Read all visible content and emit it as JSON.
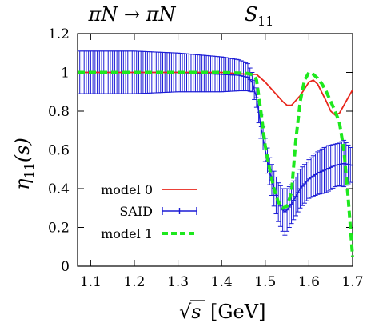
{
  "chart_data": {
    "type": "line",
    "title_left": "πN → πN",
    "title_right_base": "S",
    "title_right_sub": "11",
    "xlabel_sqrt": "√s",
    "xlabel_bar": "s",
    "xlabel_unit": "[GeV]",
    "ylabel_base": "η",
    "ylabel_sub": "11",
    "ylabel_arg": "(s)",
    "xlim": [
      1.07,
      1.7
    ],
    "ylim": [
      0.0,
      1.2
    ],
    "xticks": [
      "1.1",
      "1.2",
      "1.3",
      "1.4",
      "1.5",
      "1.6",
      "1.7"
    ],
    "xtick_values": [
      1.1,
      1.2,
      1.3,
      1.4,
      1.5,
      1.6,
      1.7
    ],
    "yticks": [
      "0",
      "0.2",
      "0.4",
      "0.6",
      "0.8",
      "1",
      "1.2"
    ],
    "ytick_values": [
      0.0,
      0.2,
      0.4,
      0.6,
      0.8,
      1.0,
      1.2
    ],
    "grid": false,
    "legend_placement": "bottom-left",
    "series": [
      {
        "name": "model 0",
        "style": "solid",
        "color": "#e8261c",
        "x": [
          1.07,
          1.2,
          1.3,
          1.4,
          1.46,
          1.48,
          1.49,
          1.5,
          1.52,
          1.54,
          1.55,
          1.56,
          1.58,
          1.6,
          1.61,
          1.62,
          1.64,
          1.65,
          1.66,
          1.67,
          1.68,
          1.69,
          1.7
        ],
        "y": [
          1.0,
          1.0,
          1.0,
          1.0,
          0.99,
          0.99,
          0.97,
          0.95,
          0.9,
          0.85,
          0.83,
          0.83,
          0.88,
          0.95,
          0.96,
          0.94,
          0.85,
          0.8,
          0.78,
          0.79,
          0.83,
          0.87,
          0.91
        ]
      },
      {
        "name": "SAID",
        "style": "errorbars",
        "color": "#1c1cd6",
        "x": [
          1.07,
          1.2,
          1.3,
          1.4,
          1.44,
          1.46,
          1.47,
          1.48,
          1.49,
          1.5,
          1.51,
          1.52,
          1.53,
          1.54,
          1.545,
          1.55,
          1.56,
          1.58,
          1.6,
          1.62,
          1.64,
          1.66,
          1.67,
          1.68,
          1.69,
          1.7
        ],
        "y": [
          1.0,
          1.0,
          1.0,
          0.99,
          0.985,
          0.975,
          0.95,
          0.87,
          0.72,
          0.6,
          0.49,
          0.4,
          0.33,
          0.29,
          0.28,
          0.29,
          0.32,
          0.4,
          0.45,
          0.48,
          0.5,
          0.52,
          0.525,
          0.53,
          0.525,
          0.52
        ],
        "err": [
          0.11,
          0.11,
          0.1,
          0.09,
          0.08,
          0.07,
          0.05,
          0.05,
          0.06,
          0.06,
          0.07,
          0.09,
          0.1,
          0.11,
          0.12,
          0.11,
          0.1,
          0.1,
          0.1,
          0.11,
          0.12,
          0.11,
          0.11,
          0.12,
          0.1,
          0.08
        ]
      },
      {
        "name": "model 1",
        "style": "dashed",
        "color": "#1ee81e",
        "x": [
          1.07,
          1.2,
          1.3,
          1.4,
          1.46,
          1.475,
          1.48,
          1.49,
          1.5,
          1.51,
          1.52,
          1.53,
          1.54,
          1.55,
          1.56,
          1.57,
          1.58,
          1.59,
          1.6,
          1.61,
          1.62,
          1.63,
          1.64,
          1.65,
          1.66,
          1.67,
          1.68,
          1.69,
          1.7
        ],
        "y": [
          1.0,
          1.0,
          1.0,
          1.0,
          0.995,
          0.985,
          0.96,
          0.8,
          0.62,
          0.5,
          0.4,
          0.33,
          0.3,
          0.31,
          0.38,
          0.65,
          0.85,
          0.96,
          1.0,
          0.99,
          0.97,
          0.94,
          0.9,
          0.85,
          0.8,
          0.74,
          0.6,
          0.35,
          0.05
        ]
      }
    ]
  }
}
